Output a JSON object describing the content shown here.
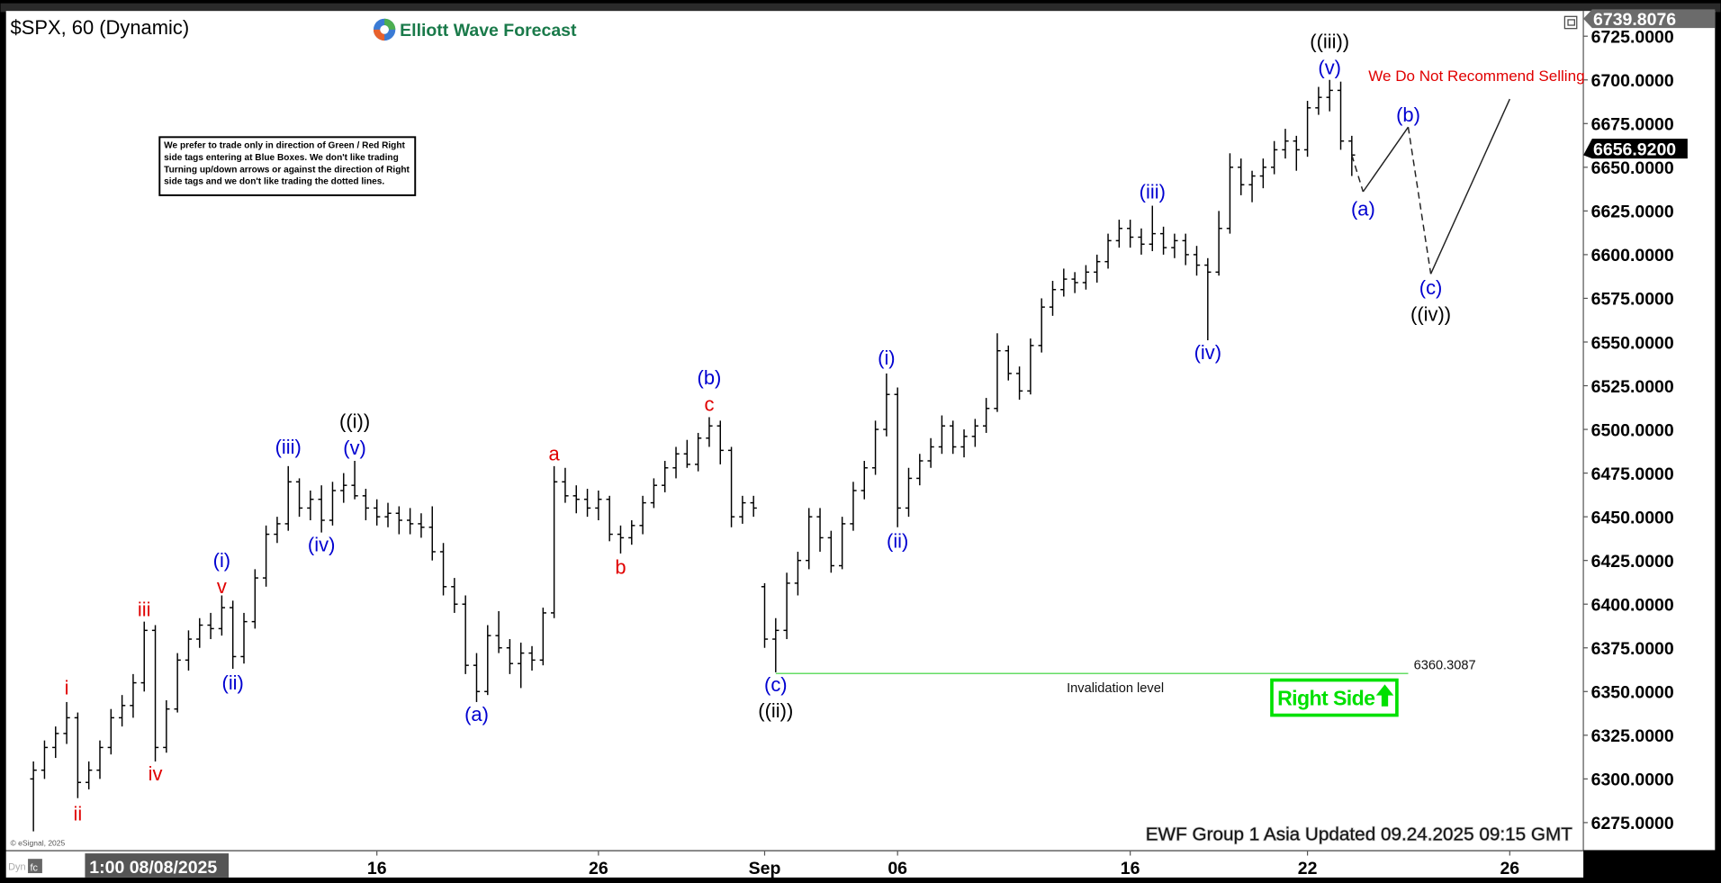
{
  "header": {
    "title": "$SPX, 60 (Dynamic)",
    "logo_text": "Elliott Wave Forecast",
    "logo_icon": "ewf-logo-icon",
    "restore_icon": "window-restore-icon"
  },
  "note": {
    "lines": [
      "We prefer to trade only in direction of Green / Red Right",
      "side tags entering at Blue Boxes. We don't like trading",
      "Turning up/down arrows or against the direction of Right",
      "side tags and we don't like trading the dotted lines."
    ]
  },
  "disclaimer": "We Do Not Recommend Selling",
  "badge": {
    "text": "Right Side",
    "icon": "arrow-up-icon",
    "color": "#00e000"
  },
  "footer": {
    "updated": "EWF Group 1 Asia Updated 09.24.2025 09:15 GMT",
    "copyright": "© eSignal, 2025",
    "dyn": "Dyn",
    "cursor_date": "1:00 08/08/2025"
  },
  "chart_data": {
    "type": "ohlc",
    "symbol": "$SPX",
    "interval": "60",
    "ylim": [
      6262,
      6742
    ],
    "grid": false,
    "yticks": [
      "6725.0000",
      "6700.0000",
      "6675.0000",
      "6650.0000",
      "6625.0000",
      "6600.0000",
      "6575.0000",
      "6550.0000",
      "6525.0000",
      "6500.0000",
      "6475.0000",
      "6450.0000",
      "6425.0000",
      "6400.0000",
      "6375.0000",
      "6350.0000",
      "6325.0000",
      "6300.0000",
      "6275.0000"
    ],
    "xticks": [
      {
        "label": "16",
        "date": "08/16"
      },
      {
        "label": "26",
        "date": "08/26"
      },
      {
        "label": "Sep",
        "date": "09/01"
      },
      {
        "label": "06",
        "date": "09/06"
      },
      {
        "label": "16",
        "date": "09/16"
      },
      {
        "label": "22",
        "date": "09/22"
      },
      {
        "label": "26",
        "date": "09/26"
      }
    ],
    "high_price": {
      "value": 6739.8076,
      "label": "6739.8076"
    },
    "last_price": {
      "value": 6656.92,
      "label": "6656.9200"
    },
    "colors": {
      "red": "#e00000",
      "blue": "#0000d0",
      "black": "#000000",
      "invalidation": "#66dd66"
    },
    "bars": [
      [
        "08/01 10:00",
        6300,
        6310,
        6270,
        6305
      ],
      [
        "08/01 11:00",
        6305,
        6322,
        6300,
        6318
      ],
      [
        "08/01 12:00",
        6318,
        6330,
        6312,
        6326
      ],
      [
        "08/04 10:00",
        6326,
        6344,
        6320,
        6335
      ],
      [
        "08/04 11:00",
        6335,
        6338,
        6289,
        6298
      ],
      [
        "08/04 12:00",
        6298,
        6310,
        6294,
        6305
      ],
      [
        "08/05 10:00",
        6305,
        6322,
        6300,
        6318
      ],
      [
        "08/05 11:00",
        6318,
        6340,
        6314,
        6335
      ],
      [
        "08/05 12:00",
        6335,
        6348,
        6330,
        6342
      ],
      [
        "08/06 10:00",
        6342,
        6360,
        6335,
        6355
      ],
      [
        "08/06 11:00",
        6355,
        6390,
        6350,
        6385
      ],
      [
        "08/06 12:00",
        6385,
        6388,
        6310,
        6318
      ],
      [
        "08/07 10:00",
        6318,
        6345,
        6315,
        6340
      ],
      [
        "08/07 11:00",
        6340,
        6372,
        6338,
        6368
      ],
      [
        "08/07 12:00",
        6368,
        6385,
        6362,
        6380
      ],
      [
        "08/08 10:00",
        6380,
        6392,
        6375,
        6388
      ],
      [
        "08/08 11:00",
        6388,
        6395,
        6380,
        6386
      ],
      [
        "08/08 12:00",
        6386,
        6405,
        6382,
        6398
      ],
      [
        "08/11 10:00",
        6398,
        6402,
        6363,
        6370
      ],
      [
        "08/11 11:00",
        6370,
        6395,
        6366,
        6390
      ],
      [
        "08/11 12:00",
        6390,
        6420,
        6386,
        6415
      ],
      [
        "08/12 10:00",
        6415,
        6445,
        6410,
        6440
      ],
      [
        "08/12 11:00",
        6440,
        6450,
        6435,
        6446
      ],
      [
        "08/12 12:00",
        6446,
        6479,
        6442,
        6470
      ],
      [
        "08/13 10:00",
        6470,
        6472,
        6450,
        6455
      ],
      [
        "08/13 11:00",
        6455,
        6465,
        6448,
        6460
      ],
      [
        "08/13 12:00",
        6460,
        6468,
        6441,
        6448
      ],
      [
        "08/14 10:00",
        6448,
        6470,
        6445,
        6465
      ],
      [
        "08/14 11:00",
        6465,
        6475,
        6458,
        6468
      ],
      [
        "08/15 10:00",
        6468,
        6482,
        6460,
        6462
      ],
      [
        "08/15 11:00",
        6462,
        6466,
        6448,
        6455
      ],
      [
        "08/18 10:00",
        6455,
        6460,
        6445,
        6450
      ],
      [
        "08/18 11:00",
        6450,
        6458,
        6444,
        6452
      ],
      [
        "08/18 12:00",
        6452,
        6456,
        6440,
        6448
      ],
      [
        "08/19 10:00",
        6448,
        6455,
        6440,
        6446
      ],
      [
        "08/19 11:00",
        6446,
        6452,
        6438,
        6444
      ],
      [
        "08/19 12:00",
        6444,
        6456,
        6425,
        6430
      ],
      [
        "08/20 10:00",
        6430,
        6435,
        6405,
        6410
      ],
      [
        "08/20 11:00",
        6410,
        6415,
        6395,
        6400
      ],
      [
        "08/20 12:00",
        6400,
        6405,
        6360,
        6365
      ],
      [
        "08/21 10:00",
        6365,
        6372,
        6344,
        6350
      ],
      [
        "08/21 11:00",
        6350,
        6388,
        6348,
        6382
      ],
      [
        "08/21 12:00",
        6382,
        6396,
        6372,
        6375
      ],
      [
        "08/22 10:00",
        6375,
        6380,
        6360,
        6366
      ],
      [
        "08/22 11:00",
        6366,
        6378,
        6352,
        6372
      ],
      [
        "08/22 12:00",
        6372,
        6376,
        6362,
        6368
      ],
      [
        "08/22 13:00",
        6368,
        6398,
        6365,
        6395
      ],
      [
        "08/25 10:00",
        6395,
        6479,
        6392,
        6470
      ],
      [
        "08/25 11:00",
        6470,
        6478,
        6458,
        6462
      ],
      [
        "08/25 12:00",
        6462,
        6468,
        6452,
        6460
      ],
      [
        "08/25 13:00",
        6460,
        6466,
        6450,
        6455
      ],
      [
        "08/26 10:00",
        6455,
        6465,
        6448,
        6460
      ],
      [
        "08/26 11:00",
        6460,
        6462,
        6436,
        6440
      ],
      [
        "08/26 12:00",
        6440,
        6445,
        6429,
        6438
      ],
      [
        "08/26 13:00",
        6438,
        6448,
        6434,
        6445
      ],
      [
        "08/27 10:00",
        6445,
        6462,
        6440,
        6458
      ],
      [
        "08/27 11:00",
        6458,
        6472,
        6455,
        6468
      ],
      [
        "08/27 12:00",
        6468,
        6482,
        6464,
        6478
      ],
      [
        "08/28 10:00",
        6478,
        6490,
        6472,
        6486
      ],
      [
        "08/28 11:00",
        6486,
        6494,
        6478,
        6480
      ],
      [
        "08/28 12:00",
        6480,
        6498,
        6476,
        6495
      ],
      [
        "08/28 13:00",
        6495,
        6507,
        6490,
        6502
      ],
      [
        "08/29 10:00",
        6502,
        6505,
        6480,
        6488
      ],
      [
        "08/29 11:00",
        6488,
        6490,
        6444,
        6450
      ],
      [
        "08/29 12:00",
        6450,
        6462,
        6446,
        6458
      ],
      [
        "08/29 13:00",
        6458,
        6462,
        6450,
        6455
      ],
      [
        "09/02 10:00",
        6410,
        6412,
        6375,
        6380
      ],
      [
        "09/02 11:00",
        6380,
        6392,
        6361,
        6385
      ],
      [
        "09/02 12:00",
        6385,
        6418,
        6380,
        6412
      ],
      [
        "09/03 10:00",
        6412,
        6430,
        6405,
        6425
      ],
      [
        "09/03 11:00",
        6425,
        6455,
        6420,
        6450
      ],
      [
        "09/03 12:00",
        6450,
        6455,
        6430,
        6438
      ],
      [
        "09/04 10:00",
        6438,
        6442,
        6418,
        6422
      ],
      [
        "09/04 11:00",
        6422,
        6450,
        6420,
        6446
      ],
      [
        "09/04 12:00",
        6446,
        6470,
        6442,
        6465
      ],
      [
        "09/05 10:00",
        6465,
        6482,
        6460,
        6478
      ],
      [
        "09/05 11:00",
        6478,
        6505,
        6474,
        6500
      ],
      [
        "09/05 12:00",
        6500,
        6532,
        6496,
        6520
      ],
      [
        "09/08 10:00",
        6520,
        6524,
        6444,
        6455
      ],
      [
        "09/08 11:00",
        6455,
        6478,
        6450,
        6472
      ],
      [
        "09/08 12:00",
        6472,
        6486,
        6468,
        6482
      ],
      [
        "09/08 13:00",
        6482,
        6495,
        6478,
        6490
      ],
      [
        "09/09 10:00",
        6490,
        6508,
        6486,
        6502
      ],
      [
        "09/09 11:00",
        6502,
        6505,
        6486,
        6490
      ],
      [
        "09/09 12:00",
        6490,
        6500,
        6484,
        6496
      ],
      [
        "09/09 13:00",
        6496,
        6506,
        6490,
        6502
      ],
      [
        "09/10 10:00",
        6502,
        6518,
        6498,
        6512
      ],
      [
        "09/10 11:00",
        6512,
        6555,
        6510,
        6545
      ],
      [
        "09/10 12:00",
        6545,
        6548,
        6528,
        6532
      ],
      [
        "09/10 13:00",
        6532,
        6536,
        6517,
        6522
      ],
      [
        "09/11 10:00",
        6522,
        6552,
        6520,
        6548
      ],
      [
        "09/11 11:00",
        6548,
        6575,
        6544,
        6570
      ],
      [
        "09/11 12:00",
        6570,
        6585,
        6565,
        6580
      ],
      [
        "09/11 13:00",
        6580,
        6592,
        6576,
        6586
      ],
      [
        "09/12 10:00",
        6586,
        6590,
        6578,
        6584
      ],
      [
        "09/12 11:00",
        6584,
        6594,
        6580,
        6590
      ],
      [
        "09/12 12:00",
        6590,
        6600,
        6584,
        6596
      ],
      [
        "09/15 10:00",
        6596,
        6612,
        6592,
        6608
      ],
      [
        "09/15 11:00",
        6608,
        6620,
        6604,
        6615
      ],
      [
        "09/16 10:00",
        6615,
        6620,
        6604,
        6610
      ],
      [
        "09/16 11:00",
        6610,
        6615,
        6600,
        6606
      ],
      [
        "09/16 12:00",
        6606,
        6628,
        6602,
        6612
      ],
      [
        "09/16 13:00",
        6612,
        6616,
        6600,
        6604
      ],
      [
        "09/17 10:00",
        6604,
        6612,
        6598,
        6608
      ],
      [
        "09/17 11:00",
        6608,
        6612,
        6594,
        6600
      ],
      [
        "09/17 12:00",
        6600,
        6605,
        6588,
        6594
      ],
      [
        "09/17 13:00",
        6594,
        6598,
        6551,
        6590
      ],
      [
        "09/18 10:00",
        6590,
        6625,
        6588,
        6615
      ],
      [
        "09/18 11:00",
        6615,
        6658,
        6612,
        6650
      ],
      [
        "09/18 12:00",
        6650,
        6655,
        6634,
        6640
      ],
      [
        "09/18 13:00",
        6640,
        6648,
        6630,
        6645
      ],
      [
        "09/19 10:00",
        6645,
        6655,
        6638,
        6650
      ],
      [
        "09/19 11:00",
        6650,
        6665,
        6646,
        6660
      ],
      [
        "09/19 12:00",
        6660,
        6672,
        6655,
        6665
      ],
      [
        "09/19 13:00",
        6665,
        6668,
        6648,
        6660
      ],
      [
        "09/22 10:00",
        6660,
        6688,
        6656,
        6684
      ],
      [
        "09/22 11:00",
        6684,
        6696,
        6680,
        6690
      ],
      [
        "09/23 10:00",
        6690,
        6700,
        6682,
        6694
      ],
      [
        "09/23 11:00",
        6694,
        6699,
        6660,
        6665
      ],
      [
        "09/24 10:00",
        6665,
        6668,
        6645,
        6657
      ]
    ],
    "wave_labels": [
      {
        "text": "i",
        "color": "red",
        "t": "08/04 10:00",
        "price": 6352
      },
      {
        "text": "ii",
        "color": "red",
        "t": "08/04 11:00",
        "price": 6280
      },
      {
        "text": "iii",
        "color": "red",
        "t": "08/06 11:00",
        "price": 6397
      },
      {
        "text": "iv",
        "color": "red",
        "t": "08/06 12:00",
        "price": 6303
      },
      {
        "text": "v",
        "color": "red",
        "t": "08/08 12:00",
        "price": 6411
      },
      {
        "text": "(i)",
        "color": "blue",
        "t": "08/08 12:00",
        "price": 6424
      },
      {
        "text": "(ii)",
        "color": "blue",
        "t": "08/11 10:00",
        "price": 6355
      },
      {
        "text": "(iii)",
        "color": "blue",
        "t": "08/12 12:00",
        "price": 6490
      },
      {
        "text": "(iv)",
        "color": "blue",
        "t": "08/13 12:00",
        "price": 6434
      },
      {
        "text": "(v)",
        "color": "blue",
        "t": "08/15 10:00",
        "price": 6490
      },
      {
        "text": "((i))",
        "color": "black",
        "t": "08/15 10:00",
        "price": 6504
      },
      {
        "text": "(a)",
        "color": "blue",
        "t": "08/21 10:00",
        "price": 6337
      },
      {
        "text": "a",
        "color": "red",
        "t": "08/25 10:00",
        "price": 6486
      },
      {
        "text": "b",
        "color": "red",
        "t": "08/26 12:00",
        "price": 6421
      },
      {
        "text": "c",
        "color": "red",
        "t": "08/28 13:00",
        "price": 6516
      },
      {
        "text": "(b)",
        "color": "blue",
        "t": "08/28 13:00",
        "price": 6528
      },
      {
        "text": "(c)",
        "color": "blue",
        "t": "09/02 11:00",
        "price": 6353
      },
      {
        "text": "((ii))",
        "color": "black",
        "t": "09/02 11:00",
        "price": 6340
      },
      {
        "text": "(i)",
        "color": "blue",
        "t": "09/05 12:00",
        "price": 6541
      },
      {
        "text": "(ii)",
        "color": "blue",
        "t": "09/08 10:00",
        "price": 6436
      },
      {
        "text": "(iii)",
        "color": "blue",
        "t": "09/16 12:00",
        "price": 6636
      },
      {
        "text": "(iv)",
        "color": "blue",
        "t": "09/17 13:00",
        "price": 6544
      },
      {
        "text": "(v)",
        "color": "blue",
        "t": "09/23 10:00",
        "price": 6708
      },
      {
        "text": "((iii))",
        "color": "black",
        "t": "09/23 10:00",
        "price": 6721
      },
      {
        "text": "(a)",
        "color": "blue",
        "t": "09/24 11:00",
        "price": 6626
      },
      {
        "text": "(b)",
        "color": "blue",
        "t": "09/24 15:00",
        "price": 6680
      },
      {
        "text": "(c)",
        "color": "blue",
        "t": "09/25 10:00",
        "price": 6580
      },
      {
        "text": "((iv))",
        "color": "black",
        "t": "09/25 10:00",
        "price": 6567
      }
    ],
    "projection": [
      {
        "from": {
          "t": "09/24 10:00",
          "price": 6657
        },
        "to": {
          "t": "09/24 11:00",
          "price": 6636
        },
        "style": "dashed"
      },
      {
        "from": {
          "t": "09/24 11:00",
          "price": 6636
        },
        "to": {
          "t": "09/24 15:00",
          "price": 6673
        },
        "style": "solid"
      },
      {
        "from": {
          "t": "09/24 15:00",
          "price": 6673
        },
        "to": {
          "t": "09/25 10:00",
          "price": 6589
        },
        "style": "dashed"
      },
      {
        "from": {
          "t": "09/25 10:00",
          "price": 6589
        },
        "to": {
          "t": "09/26 10:00",
          "price": 6689
        },
        "style": "solid"
      }
    ],
    "invalidation": {
      "price": 6360.3087,
      "label": "6360.3087",
      "text": "Invalidation level",
      "from": "09/02 11:00",
      "to": "09/24 15:00"
    }
  }
}
